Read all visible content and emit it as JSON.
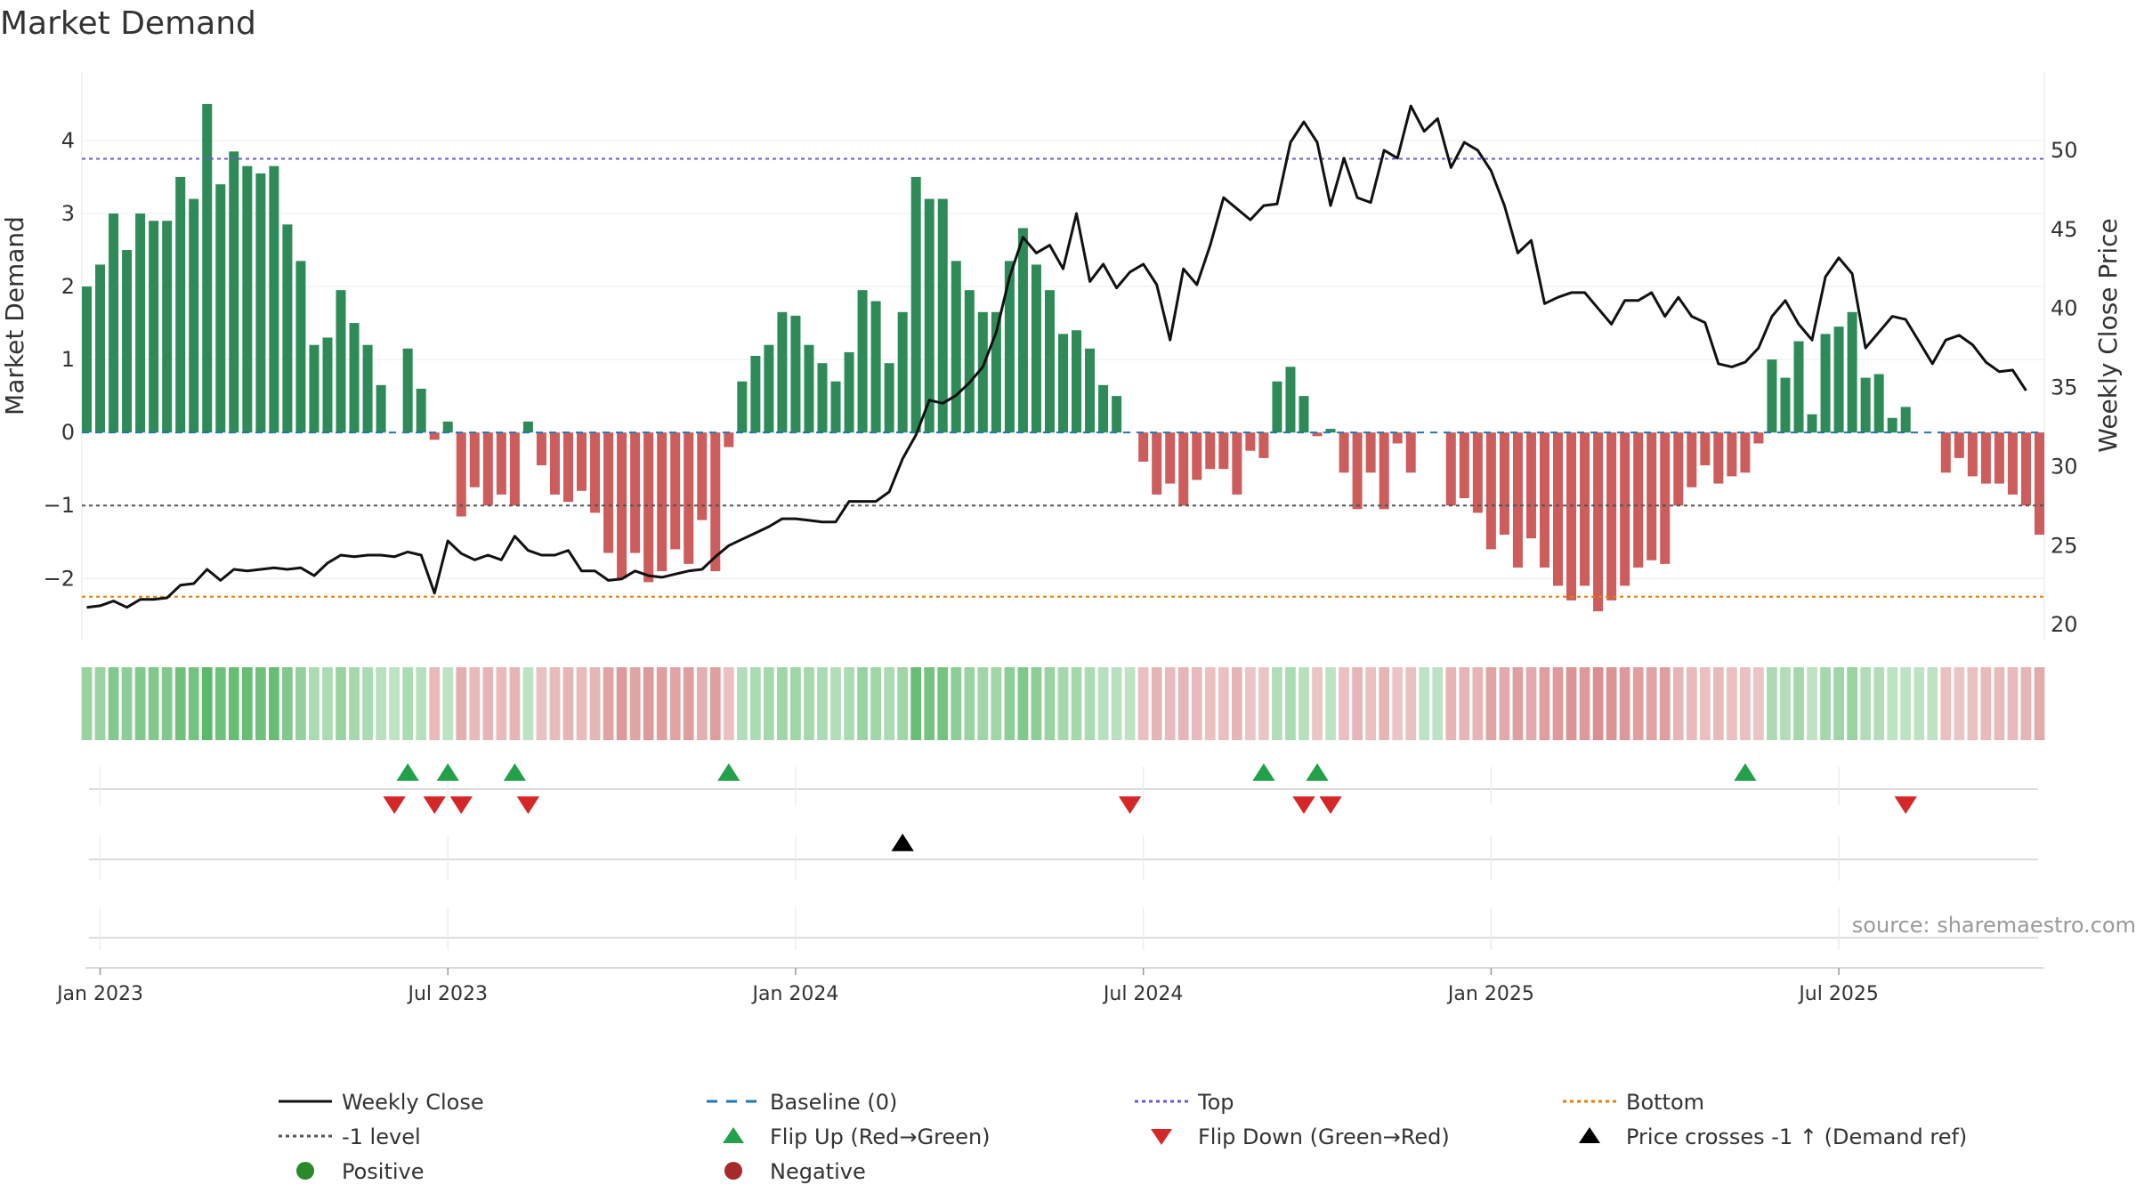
{
  "chart_data": {
    "type": "bar+line",
    "title": "Market Demand",
    "ylabel_left": "Market Demand",
    "ylabel_right": "Weekly Close Price",
    "left_axis": {
      "ylim": [
        -2.85,
        4.95
      ],
      "ticks": [
        4,
        3,
        2,
        1,
        0,
        -1,
        -2
      ]
    },
    "right_axis": {
      "ylim": [
        19,
        55
      ],
      "ticks": [
        50,
        45,
        40,
        35,
        30,
        25,
        20
      ]
    },
    "date_axis": {
      "start_week": "2022-12-26",
      "weeks_total": 143,
      "ticks": [
        {
          "label": "Jan 2023",
          "week": 1
        },
        {
          "label": "Jul 2023",
          "week": 27
        },
        {
          "label": "Jan 2024",
          "week": 53
        },
        {
          "label": "Jul 2024",
          "week": 79
        },
        {
          "label": "Jan 2025",
          "week": 105
        },
        {
          "label": "Jul 2025",
          "week": 131
        }
      ]
    },
    "reference_lines": {
      "top": 3.75,
      "minus_one": -1,
      "bottom": -2.25,
      "baseline": 0
    },
    "market_demand": [
      2.0,
      2.3,
      3.0,
      2.5,
      3.0,
      2.9,
      2.9,
      3.5,
      3.2,
      4.5,
      3.4,
      3.85,
      3.65,
      3.55,
      3.65,
      2.85,
      2.35,
      1.2,
      1.3,
      1.95,
      1.5,
      1.2,
      0.65,
      0,
      1.15,
      0.6,
      -0.1,
      0.15,
      -1.15,
      -0.75,
      -1.0,
      -0.85,
      -1.0,
      0.15,
      -0.45,
      -0.85,
      -0.95,
      -0.8,
      -1.1,
      -1.65,
      -2.0,
      -1.65,
      -2.05,
      -1.9,
      -1.6,
      -1.8,
      -1.2,
      -1.9,
      -0.2,
      0.7,
      1.05,
      1.2,
      1.65,
      1.6,
      1.2,
      0.95,
      0.7,
      1.1,
      1.95,
      1.8,
      0.95,
      1.65,
      3.5,
      3.2,
      3.2,
      2.35,
      1.95,
      1.65,
      1.65,
      2.35,
      2.8,
      2.3,
      1.95,
      1.35,
      1.4,
      1.15,
      0.65,
      0.5,
      0,
      -0.4,
      -0.85,
      -0.7,
      -1.0,
      -0.65,
      -0.5,
      -0.5,
      -0.85,
      -0.25,
      -0.35,
      0.7,
      0.9,
      0.5,
      -0.05,
      0.05,
      -0.55,
      -1.05,
      -0.55,
      -1.05,
      -0.15,
      -0.55,
      0,
      0,
      -1.0,
      -0.9,
      -1.1,
      -1.6,
      -1.4,
      -1.85,
      -1.45,
      -1.85,
      -2.1,
      -2.3,
      -2.1,
      -2.45,
      -2.3,
      -2.1,
      -1.85,
      -1.75,
      -1.8,
      -1.0,
      -0.75,
      -0.45,
      -0.7,
      -0.6,
      -0.55,
      -0.15,
      1.0,
      0.75,
      1.25,
      0.25,
      1.35,
      1.45,
      1.65,
      0.75,
      0.8,
      0.2,
      0.35,
      0,
      0,
      -0.55,
      -0.35,
      -0.6,
      -0.7,
      -0.7,
      -0.85,
      -1.0,
      -1.4
    ],
    "weekly_close": [
      21.1,
      21.2,
      21.5,
      21.1,
      21.6,
      21.6,
      21.7,
      22.5,
      22.6,
      23.5,
      22.8,
      23.5,
      23.4,
      23.5,
      23.6,
      23.5,
      23.6,
      23.1,
      23.9,
      24.4,
      24.3,
      24.4,
      24.4,
      24.3,
      24.6,
      24.4,
      22,
      25.3,
      24.5,
      24.1,
      24.4,
      24.1,
      25.6,
      24.7,
      24.4,
      24.4,
      24.7,
      23.4,
      23.4,
      22.8,
      22.9,
      23.4,
      23.1,
      23,
      23.2,
      23.4,
      23.5,
      24.3,
      25,
      25.4,
      25.8,
      26.2,
      26.7,
      26.7,
      26.6,
      26.5,
      26.5,
      27.8,
      27.8,
      27.8,
      28.4,
      30.5,
      32,
      34.2,
      34,
      34.5,
      35.3,
      36.3,
      38.5,
      42,
      44.5,
      43.5,
      44,
      42.5,
      46,
      41.7,
      42.8,
      41.3,
      42.3,
      42.8,
      41.5,
      38,
      42.5,
      41.5,
      44,
      47,
      46.3,
      45.6,
      46.5,
      46.6,
      50.5,
      51.8,
      50.5,
      46.5,
      49.5,
      47,
      46.7,
      50,
      49.5,
      52.8,
      51.2,
      52,
      48.9,
      50.5,
      50,
      48.7,
      46.5,
      43.5,
      44.3,
      40.3,
      40.7,
      41,
      41,
      40,
      39,
      40.5,
      40.5,
      41,
      39.5,
      40.7,
      39.5,
      39.1,
      36.5,
      36.3,
      36.6,
      37.5,
      39.5,
      40.5,
      39,
      38,
      42,
      43.2,
      42.2,
      37.5,
      38.5,
      39.5,
      39.3,
      37.9,
      36.5,
      38,
      38.3,
      37.7,
      36.6,
      36,
      36.1,
      34.8
    ],
    "bands": {
      "strengths": [
        0.5,
        0.5,
        0.7,
        0.6,
        0.7,
        0.7,
        0.7,
        0.85,
        0.8,
        1,
        0.85,
        0.9,
        0.9,
        0.85,
        0.9,
        0.7,
        0.55,
        0.35,
        0.35,
        0.5,
        0.4,
        0.35,
        0.25,
        0.2,
        0.35,
        0.25,
        0.3,
        0.2,
        0.4,
        0.3,
        0.35,
        0.3,
        0.35,
        0.2,
        0.25,
        0.3,
        0.35,
        0.3,
        0.35,
        0.5,
        0.6,
        0.5,
        0.6,
        0.55,
        0.5,
        0.55,
        0.4,
        0.55,
        0.25,
        0.3,
        0.35,
        0.4,
        0.45,
        0.45,
        0.4,
        0.35,
        0.3,
        0.35,
        0.5,
        0.45,
        0.35,
        0.45,
        0.9,
        0.8,
        0.8,
        0.6,
        0.5,
        0.45,
        0.45,
        0.6,
        0.7,
        0.6,
        0.5,
        0.4,
        0.4,
        0.35,
        0.25,
        0.25,
        0.2,
        0.25,
        0.35,
        0.3,
        0.35,
        0.3,
        0.25,
        0.25,
        0.35,
        0.2,
        0.2,
        0.3,
        0.35,
        0.25,
        0.2,
        0.2,
        0.25,
        0.35,
        0.25,
        0.35,
        0.2,
        0.25,
        0.2,
        0.2,
        0.35,
        0.35,
        0.35,
        0.5,
        0.45,
        0.55,
        0.45,
        0.55,
        0.6,
        0.65,
        0.6,
        0.7,
        0.65,
        0.6,
        0.55,
        0.5,
        0.55,
        0.35,
        0.3,
        0.25,
        0.3,
        0.25,
        0.25,
        0.2,
        0.35,
        0.3,
        0.4,
        0.2,
        0.4,
        0.45,
        0.5,
        0.3,
        0.3,
        0.2,
        0.2,
        0.2,
        0.2,
        0.25,
        0.2,
        0.25,
        0.3,
        0.3,
        0.3,
        0.35,
        0.45
      ]
    },
    "flip_up_weeks": [
      24,
      27,
      32,
      48,
      88,
      92,
      124
    ],
    "flip_down_weeks": [
      23,
      26,
      28,
      33,
      78,
      91,
      93,
      136
    ],
    "price_cross_weeks": [
      61
    ],
    "colors": {
      "positive": "#2e8b57",
      "negative": "#cd5c5c",
      "price_line": "#111111",
      "baseline": "#1f77b4",
      "top": "#6a5acd",
      "minus_one": "#555555",
      "bottom": "#e67e00",
      "flip_up": "#22a04a",
      "flip_down": "#d62728",
      "cross": "#000000",
      "legend_positive": "#2a8a2a",
      "legend_negative": "#a52a2a",
      "grid": "#d8d8d8",
      "source": "#9a9a9a"
    },
    "legend": [
      {
        "label": "Weekly Close",
        "symbol": "line-solid",
        "color": "#111111"
      },
      {
        "label": "Baseline (0)",
        "symbol": "line-dash",
        "color": "#1f77b4"
      },
      {
        "label": "Top",
        "symbol": "line-dot",
        "color": "#6a5acd"
      },
      {
        "label": "Bottom",
        "symbol": "line-dot",
        "color": "#e67e00"
      },
      {
        "label": "-1 level",
        "symbol": "line-dot",
        "color": "#555555"
      },
      {
        "label": "Flip Up (Red→Green)",
        "symbol": "tri-up",
        "color": "#22a04a"
      },
      {
        "label": "Flip Down (Green→Red)",
        "symbol": "tri-down",
        "color": "#d62728"
      },
      {
        "label": "Price crosses -1 ↑ (Demand ref)",
        "symbol": "tri-up",
        "color": "#000000"
      },
      {
        "label": "Positive",
        "symbol": "circle",
        "color": "#2a8a2a"
      },
      {
        "label": "Negative",
        "symbol": "circle",
        "color": "#a52a2a"
      }
    ],
    "source": "source: sharemaestro.com"
  }
}
